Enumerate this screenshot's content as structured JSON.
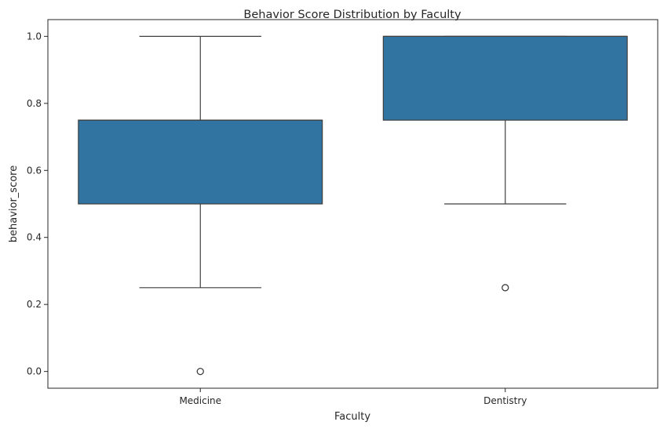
{
  "chart_data": {
    "type": "box",
    "title": "Behavior Score Distribution by Faculty",
    "xlabel": "Faculty",
    "ylabel": "behavior_score",
    "ylim": [
      -0.05,
      1.05
    ],
    "yticks": [
      "0.0",
      "0.2",
      "0.4",
      "0.6",
      "0.8",
      "1.0"
    ],
    "categories": [
      "Medicine",
      "Dentistry"
    ],
    "boxes": [
      {
        "name": "Medicine",
        "whislo": 0.25,
        "q1": 0.5,
        "med": 0.75,
        "q3": 0.75,
        "whishi": 1.0,
        "fliers": [
          0.0
        ]
      },
      {
        "name": "Dentistry",
        "whislo": 0.5,
        "q1": 0.75,
        "med": 1.0,
        "q3": 1.0,
        "whishi": 1.0,
        "fliers": [
          0.25
        ]
      }
    ],
    "box_color": "#3274a1",
    "line_color": "#3f3f3f",
    "grid": false,
    "legend": "none"
  }
}
